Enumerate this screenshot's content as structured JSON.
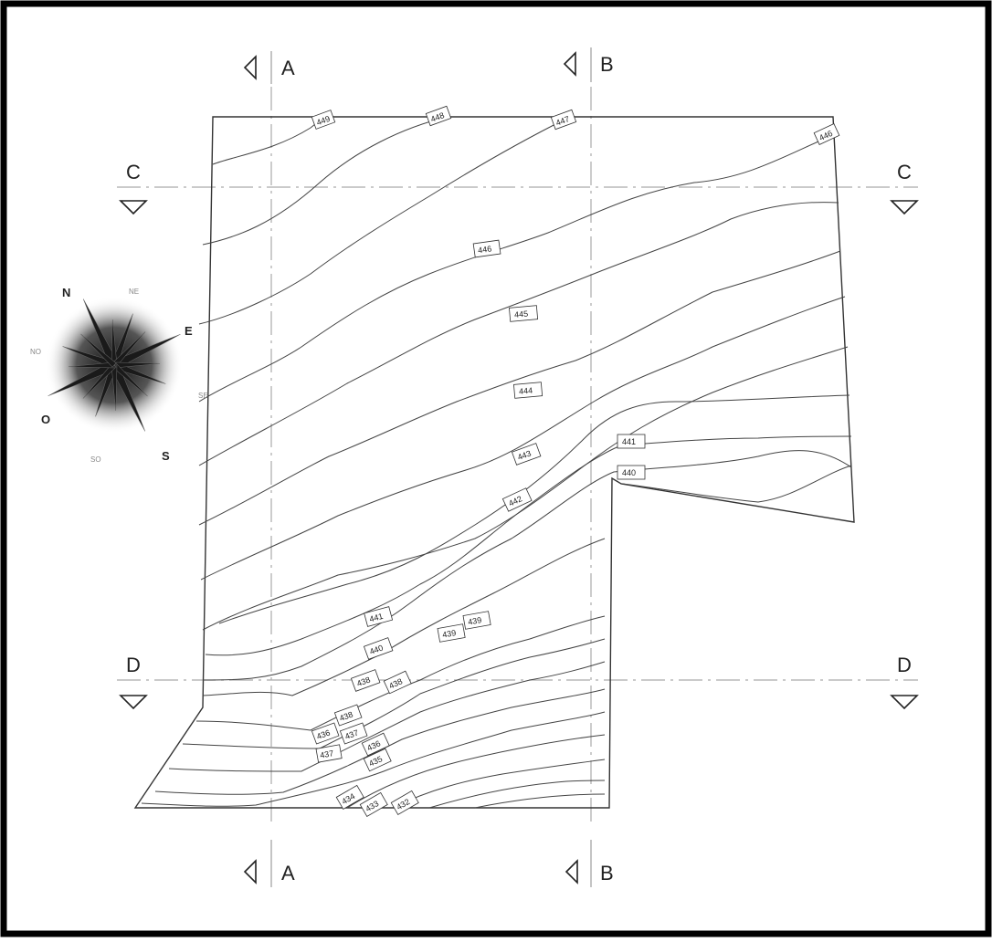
{
  "sections": {
    "a_top": "A",
    "b_top": "B",
    "a_bottom": "A",
    "b_bottom": "B",
    "c_left": "C",
    "c_right": "C",
    "d_left": "D",
    "d_right": "D"
  },
  "compass": {
    "n": "N",
    "ne": "NE",
    "e": "E",
    "se": "SE",
    "s": "S",
    "so": "SO",
    "o": "O",
    "no": "NO"
  },
  "contour_labels": [
    "449",
    "448",
    "447",
    "446",
    "446",
    "445",
    "444",
    "443",
    "442",
    "441",
    "440",
    "441",
    "440",
    "439",
    "439",
    "438",
    "438",
    "438",
    "437",
    "436",
    "437",
    "436",
    "435",
    "434",
    "433",
    "432"
  ],
  "colors": {
    "line": "#444444",
    "section_line": "#aaaaaa",
    "frame": "#000000"
  }
}
